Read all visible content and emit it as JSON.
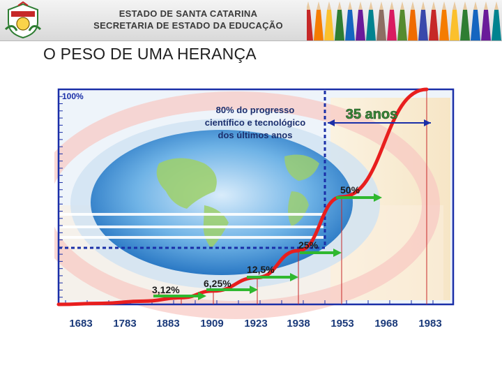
{
  "header": {
    "line1": "ESTADO DE SANTA CATARINA",
    "line2": "SECRETARIA DE ESTADO DA EDUCAÇÃO"
  },
  "slide": {
    "title": "O PESO DE UMA HERANÇA"
  },
  "chart_data": {
    "type": "line",
    "title": "",
    "xlabel": "",
    "ylabel": "",
    "x_categories": [
      "1683",
      "1783",
      "1883",
      "1909",
      "1923",
      "1938",
      "1953",
      "1968",
      "1983"
    ],
    "y_top_label": "100%",
    "series": [
      {
        "values": [
          0,
          0.5,
          1.5,
          3.12,
          6.25,
          12.5,
          25,
          50,
          100
        ]
      }
    ],
    "value_labels": [
      {
        "x": "1909",
        "text": "3,12%"
      },
      {
        "x": "1923",
        "text": "6,25%"
      },
      {
        "x": "1938",
        "text": "12,5%"
      },
      {
        "x": "1953",
        "text": "25%"
      },
      {
        "x": "1968",
        "text": "50%"
      }
    ],
    "annotation_text": [
      "80% do progresso",
      "científico e tecnológico",
      "dos últimos anos"
    ],
    "span_label": "35 anos",
    "colors": {
      "curve": "#e81e1e",
      "arrows": "#2fb82f",
      "dashed": "#1a2fa8",
      "axis": "#1a2fa8",
      "labels": "#1b3a7a"
    }
  }
}
